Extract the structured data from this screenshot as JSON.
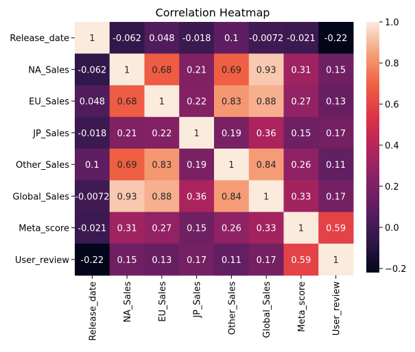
{
  "chart_data": {
    "type": "heatmap",
    "title": "Correlation Heatmap",
    "xlabel": "",
    "ylabel": "",
    "rows": [
      "Release_date",
      "NA_Sales",
      "EU_Sales",
      "JP_Sales",
      "Other_Sales",
      "Global_Sales",
      "Meta_score",
      "User_review"
    ],
    "columns": [
      "Release_date",
      "NA_Sales",
      "EU_Sales",
      "JP_Sales",
      "Other_Sales",
      "Global_Sales",
      "Meta_score",
      "User_review"
    ],
    "values": [
      [
        1,
        -0.062,
        0.048,
        -0.018,
        0.1,
        -0.0072,
        -0.021,
        -0.22
      ],
      [
        -0.062,
        1,
        0.68,
        0.21,
        0.69,
        0.93,
        0.31,
        0.15
      ],
      [
        0.048,
        0.68,
        1,
        0.22,
        0.83,
        0.88,
        0.27,
        0.13
      ],
      [
        -0.018,
        0.21,
        0.22,
        1,
        0.19,
        0.36,
        0.15,
        0.17
      ],
      [
        0.1,
        0.69,
        0.83,
        0.19,
        1,
        0.84,
        0.26,
        0.11
      ],
      [
        -0.0072,
        0.93,
        0.88,
        0.36,
        0.84,
        1,
        0.33,
        0.17
      ],
      [
        -0.021,
        0.31,
        0.27,
        0.15,
        0.26,
        0.33,
        1,
        0.59
      ],
      [
        -0.22,
        0.15,
        0.13,
        0.17,
        0.11,
        0.17,
        0.59,
        1
      ]
    ],
    "colorbar": {
      "range": [
        -0.22,
        1.0
      ],
      "ticks": [
        -0.2,
        0.0,
        0.2,
        0.4,
        0.6,
        0.8,
        1.0
      ],
      "tick_labels": [
        "−0.2",
        "0.0",
        "0.2",
        "0.4",
        "0.6",
        "0.8",
        "1.0"
      ],
      "colormap": "rocket"
    },
    "annotations": true,
    "grid": false
  }
}
